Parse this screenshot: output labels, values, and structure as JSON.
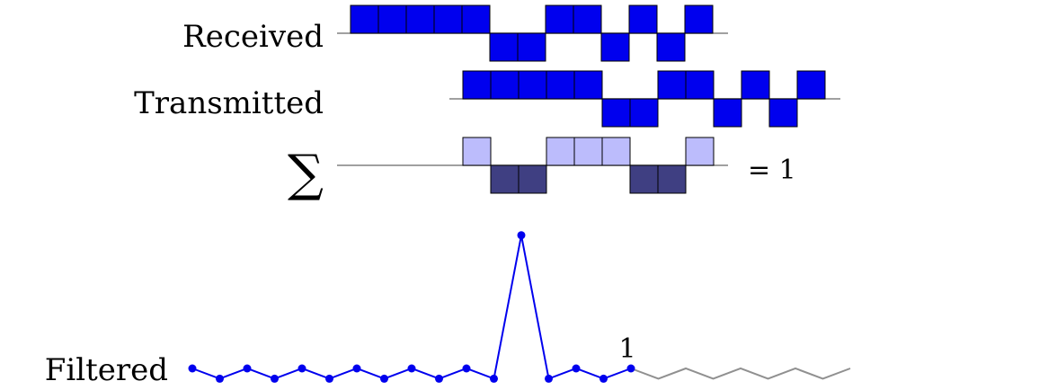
{
  "labels": {
    "received": "Received",
    "transmitted": "Transmitted",
    "sum": "∑",
    "equals_one": "= 1",
    "filtered": "Filtered",
    "marker": "1"
  },
  "received": {
    "bits": [
      1,
      1,
      1,
      1,
      1,
      0,
      0,
      1,
      1,
      0,
      1,
      0,
      1
    ],
    "color": "#0000ee"
  },
  "transmitted": {
    "bits": [
      1,
      1,
      1,
      1,
      1,
      0,
      0,
      1,
      1,
      0,
      1,
      0,
      1
    ],
    "color": "#0000ee"
  },
  "product": {
    "bits": [
      1,
      0,
      0,
      1,
      1,
      1,
      0,
      0,
      1
    ],
    "pos_color": "#bcbcfc",
    "neg_color": "#3f3f82"
  },
  "filtered": {
    "values": [
      0,
      -1,
      0,
      -1,
      0,
      -1,
      0,
      -1,
      0,
      -1,
      0,
      -1,
      13,
      -1,
      0,
      -1,
      0
    ],
    "tail_values": [
      0,
      -1,
      0,
      -1,
      0,
      -1,
      0,
      -1,
      0
    ],
    "marker_index": 16,
    "color": "#0000ee",
    "tail_color": "#909090"
  }
}
